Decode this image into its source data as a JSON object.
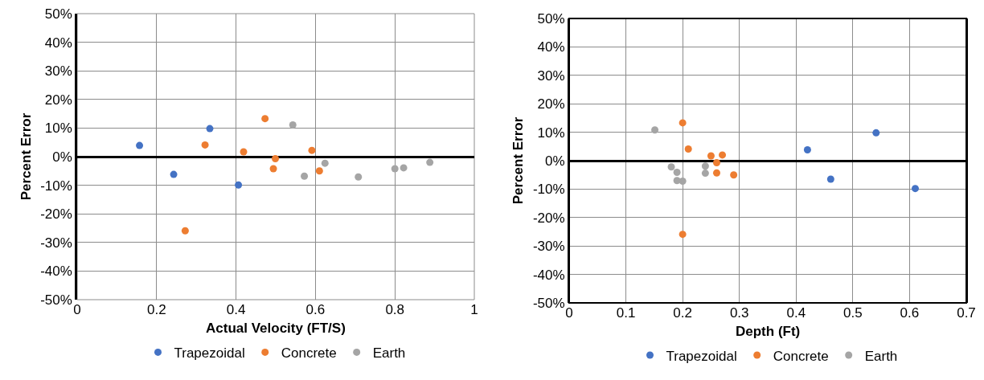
{
  "chart_data": [
    {
      "type": "scatter",
      "xlabel": "Actual Velocity (FT/S)",
      "ylabel": "Percent Error",
      "marker": "circle",
      "grid": true,
      "legend": "bottom",
      "xlim": [
        0,
        1
      ],
      "xticks": [
        0,
        0.2,
        0.4,
        0.6,
        0.8,
        1
      ],
      "ylim": [
        -50,
        50
      ],
      "yticks": [
        {
          "value": -50,
          "label": "-50%"
        },
        {
          "value": -40,
          "label": "-40%"
        },
        {
          "value": -30,
          "label": "-30%"
        },
        {
          "value": -20,
          "label": "-20%"
        },
        {
          "value": -10,
          "label": "-10%"
        },
        {
          "value": 0,
          "label": "0%"
        },
        {
          "value": 10,
          "label": "10%"
        },
        {
          "value": 20,
          "label": "20%"
        },
        {
          "value": 30,
          "label": "30%"
        },
        {
          "value": 40,
          "label": "40%"
        },
        {
          "value": 50,
          "label": "50%"
        }
      ],
      "series": [
        {
          "name": "Trapezoidal",
          "color": "#4472c4",
          "x": [
            0.157,
            0.334,
            0.243,
            0.406
          ],
          "values": [
            3.9,
            9.8,
            -6.2,
            -9.9
          ]
        },
        {
          "name": "Concrete",
          "color": "#ed7d31",
          "x": [
            0.473,
            0.322,
            0.419,
            0.499,
            0.494,
            0.591,
            0.61,
            0.272
          ],
          "values": [
            13.3,
            4.1,
            1.7,
            -0.7,
            -4.2,
            2.2,
            -5.0,
            -25.9
          ]
        },
        {
          "name": "Earth",
          "color": "#a5a5a5",
          "x": [
            0.543,
            0.624,
            0.572,
            0.708,
            0.8,
            0.822,
            0.888
          ],
          "values": [
            11.1,
            -2.3,
            -6.8,
            -7.1,
            -4.2,
            -3.9,
            -2.0
          ]
        }
      ]
    },
    {
      "type": "scatter",
      "xlabel": "Depth (Ft)",
      "ylabel": "Percent Error",
      "marker": "circle",
      "grid": true,
      "legend": "bottom",
      "xlim": [
        0,
        0.7
      ],
      "xticks": [
        0,
        0.1,
        0.2,
        0.3,
        0.4,
        0.5,
        0.6,
        0.7
      ],
      "ylim": [
        -50,
        50
      ],
      "yticks": [
        {
          "value": -50,
          "label": "-50%"
        },
        {
          "value": -40,
          "label": "-40%"
        },
        {
          "value": -30,
          "label": "-30%"
        },
        {
          "value": -20,
          "label": "-20%"
        },
        {
          "value": -10,
          "label": "-10%"
        },
        {
          "value": 0,
          "label": "0%"
        },
        {
          "value": 10,
          "label": "10%"
        },
        {
          "value": 20,
          "label": "20%"
        },
        {
          "value": 30,
          "label": "30%"
        },
        {
          "value": 40,
          "label": "40%"
        },
        {
          "value": 50,
          "label": "50%"
        }
      ],
      "series": [
        {
          "name": "Trapezoidal",
          "color": "#4472c4",
          "x": [
            0.42,
            0.541,
            0.461,
            0.61
          ],
          "values": [
            3.8,
            9.8,
            -6.5,
            -9.8
          ]
        },
        {
          "name": "Concrete",
          "color": "#ed7d31",
          "x": [
            0.2,
            0.21,
            0.25,
            0.27,
            0.26,
            0.26,
            0.29,
            0.2
          ],
          "values": [
            13.3,
            4.1,
            1.7,
            2.0,
            -0.7,
            -4.3,
            -5.0,
            -25.9
          ]
        },
        {
          "name": "Earth",
          "color": "#a5a5a5",
          "x": [
            0.151,
            0.18,
            0.19,
            0.24,
            0.24,
            0.2,
            0.19
          ],
          "values": [
            10.8,
            -2.2,
            -4.1,
            -1.9,
            -4.4,
            -7.2,
            -7.0
          ]
        }
      ]
    }
  ]
}
